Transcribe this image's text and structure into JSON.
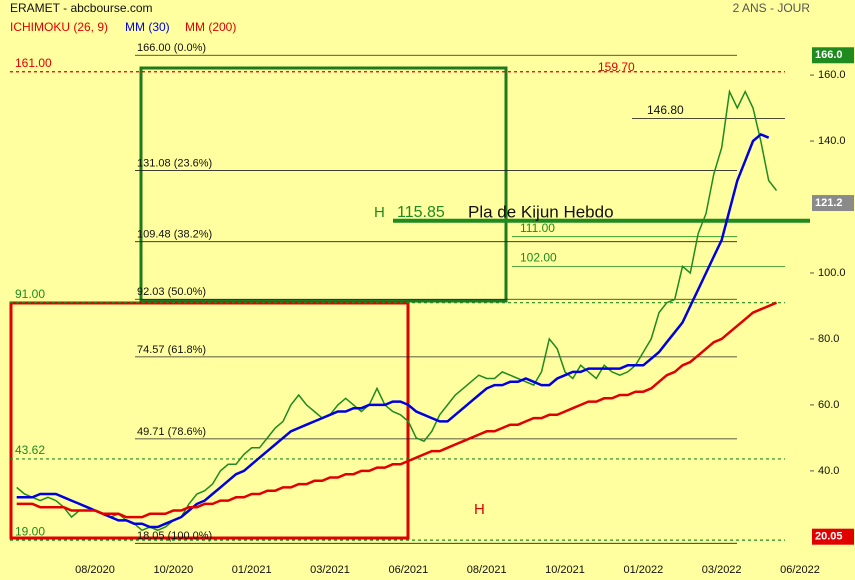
{
  "chart_data": {
    "type": "line",
    "title": "ERAMET - abcbourse.com",
    "subtitle": "2 ANS - JOUR",
    "ichimoku_label": {
      "text": "ICHIMOKU (26, 9)",
      "color": "#e00000"
    },
    "categories": [
      null,
      null,
      null,
      null,
      null,
      null,
      null,
      null,
      null,
      null,
      "08/2020",
      null,
      null,
      null,
      null,
      null,
      null,
      null,
      null,
      null,
      "10/2020",
      null,
      null,
      null,
      null,
      null,
      null,
      null,
      null,
      null,
      "01/2021",
      null,
      null,
      null,
      null,
      null,
      null,
      null,
      null,
      null,
      "03/2021",
      null,
      null,
      null,
      null,
      null,
      null,
      null,
      null,
      null,
      "06/2021",
      null,
      null,
      null,
      null,
      null,
      null,
      null,
      null,
      null,
      "08/2021",
      null,
      null,
      null,
      null,
      null,
      null,
      null,
      null,
      null,
      "10/2021",
      null,
      null,
      null,
      null,
      null,
      null,
      null,
      null,
      null,
      "01/2022",
      null,
      null,
      null,
      null,
      null,
      null,
      null,
      null,
      null,
      "03/2022",
      null,
      null,
      null,
      null,
      null,
      null,
      null,
      null,
      null,
      "06/2022"
    ],
    "series": [
      {
        "color": "#1f8a1f",
        "values": [
          35,
          33,
          32,
          31,
          32,
          31,
          29,
          26,
          28,
          28,
          28,
          27,
          26,
          27,
          25,
          24,
          22,
          23,
          22,
          23,
          25,
          26,
          30,
          33,
          34,
          36,
          40,
          42,
          42,
          45,
          47,
          47,
          50,
          53,
          55,
          60,
          63,
          60,
          58,
          56,
          57,
          60,
          62,
          60,
          58,
          60,
          65,
          60,
          58,
          57,
          55,
          50,
          49,
          52,
          57,
          60,
          63,
          65,
          67,
          69,
          68,
          68,
          70,
          69,
          68,
          67,
          66,
          70,
          80,
          77,
          70,
          68,
          72,
          70,
          68,
          72,
          70,
          69,
          70,
          72,
          76,
          80,
          88,
          91,
          92,
          102,
          100,
          112,
          118,
          130,
          138,
          155,
          150,
          155,
          150,
          140,
          128,
          125,
          null,
          null,
          null
        ]
      },
      {
        "name": "MM (30)",
        "color": "#0000e0",
        "values": [
          32,
          32,
          32,
          33,
          33,
          33,
          32,
          31,
          30,
          29,
          28,
          27,
          26,
          25,
          25,
          24,
          24,
          23,
          23,
          24,
          25,
          26,
          28,
          30,
          31,
          33,
          35,
          37,
          39,
          40,
          42,
          44,
          46,
          48,
          50,
          52,
          53,
          54,
          55,
          56,
          57,
          58,
          58,
          59,
          59,
          60,
          60,
          60,
          61,
          61,
          60,
          58,
          57,
          56,
          55,
          55,
          57,
          59,
          61,
          63,
          65,
          66,
          66,
          67,
          67,
          68,
          67,
          66,
          66,
          68,
          69,
          70,
          70,
          71,
          71,
          71,
          71,
          71,
          72,
          72,
          72,
          74,
          76,
          79,
          82,
          85,
          90,
          95,
          100,
          105,
          110,
          119,
          128,
          134,
          140,
          142,
          141,
          null,
          null,
          null,
          null
        ]
      },
      {
        "name": "MM (200)",
        "color": "#e00000",
        "values": [
          30,
          30,
          30,
          29,
          29,
          29,
          29,
          28,
          28,
          28,
          28,
          27,
          27,
          27,
          26,
          26,
          26,
          27,
          27,
          27,
          28,
          28,
          29,
          29,
          30,
          30,
          31,
          31,
          32,
          32,
          33,
          33,
          34,
          34,
          35,
          35,
          36,
          36,
          37,
          37,
          38,
          38,
          39,
          39,
          40,
          40,
          41,
          41,
          42,
          42,
          43,
          44,
          45,
          46,
          46,
          47,
          48,
          49,
          50,
          51,
          52,
          52,
          53,
          54,
          54,
          55,
          56,
          56,
          57,
          57,
          58,
          59,
          60,
          61,
          61,
          62,
          62,
          63,
          63,
          64,
          64,
          65,
          67,
          69,
          70,
          72,
          73,
          75,
          77,
          79,
          80,
          82,
          84,
          86,
          88,
          89,
          90,
          91,
          null,
          null,
          null
        ]
      }
    ],
    "ylim": [
      14.5,
      177.3
    ],
    "yticks": [
      {
        "value": 40,
        "label": "40.0"
      },
      {
        "value": 60,
        "label": "60.0"
      },
      {
        "value": 80,
        "label": "80.0"
      },
      {
        "value": 100,
        "label": "100.0"
      },
      {
        "value": 140,
        "label": "140.0"
      },
      {
        "value": 160,
        "label": "160.0"
      }
    ],
    "fibonacci": [
      {
        "value": 166.0,
        "label": "166.00  (0.0%)"
      },
      {
        "value": 131.08,
        "label": "131.08  (23.6%)"
      },
      {
        "value": 109.48,
        "label": "109.48  (38.2%)"
      },
      {
        "value": 92.03,
        "label": "92.03  (50.0%)"
      },
      {
        "value": 74.57,
        "label": "74.57  (61.8%)"
      },
      {
        "value": 49.71,
        "label": "49.71  (78.6%)"
      },
      {
        "value": 18.05,
        "label": "18.05  (100.0%)"
      }
    ],
    "levels": [
      {
        "value": 161.0,
        "label": "161.00",
        "color": "#e00000"
      },
      {
        "value": 91.0,
        "label": "91.00",
        "color": "#1f8a1f"
      },
      {
        "value": 43.62,
        "label": "43.62",
        "color": "#1f8a1f"
      },
      {
        "value": 19.0,
        "label": "19.00",
        "color": "#1f8a1f"
      },
      {
        "value": 159.7,
        "label": "159.70",
        "color": "#e00000"
      },
      {
        "value": 146.8,
        "label": "146.80",
        "color": "#111111"
      },
      {
        "value": 111.0,
        "label": "111.00",
        "color": "#1f8a1f"
      },
      {
        "value": 102.0,
        "label": "102.00",
        "color": "#1f8a1f"
      },
      {
        "value": 115.85,
        "label": "115.85",
        "color": "#1f8a1f"
      }
    ],
    "price_boxes": [
      {
        "value": 166.0,
        "label": "166.0",
        "color": "#1f8a1f"
      },
      {
        "value": 121.2,
        "label": "121.2",
        "color": "#8a8a8a"
      },
      {
        "value": 20.05,
        "label": "20.05",
        "color": "#e00000"
      }
    ],
    "annotations": [
      {
        "text": "Pla de Kijun Hebdo",
        "color": "#111111"
      },
      {
        "text": "H",
        "color": "#1f8a1f"
      },
      {
        "text": "H",
        "color": "#e00000"
      }
    ]
  }
}
